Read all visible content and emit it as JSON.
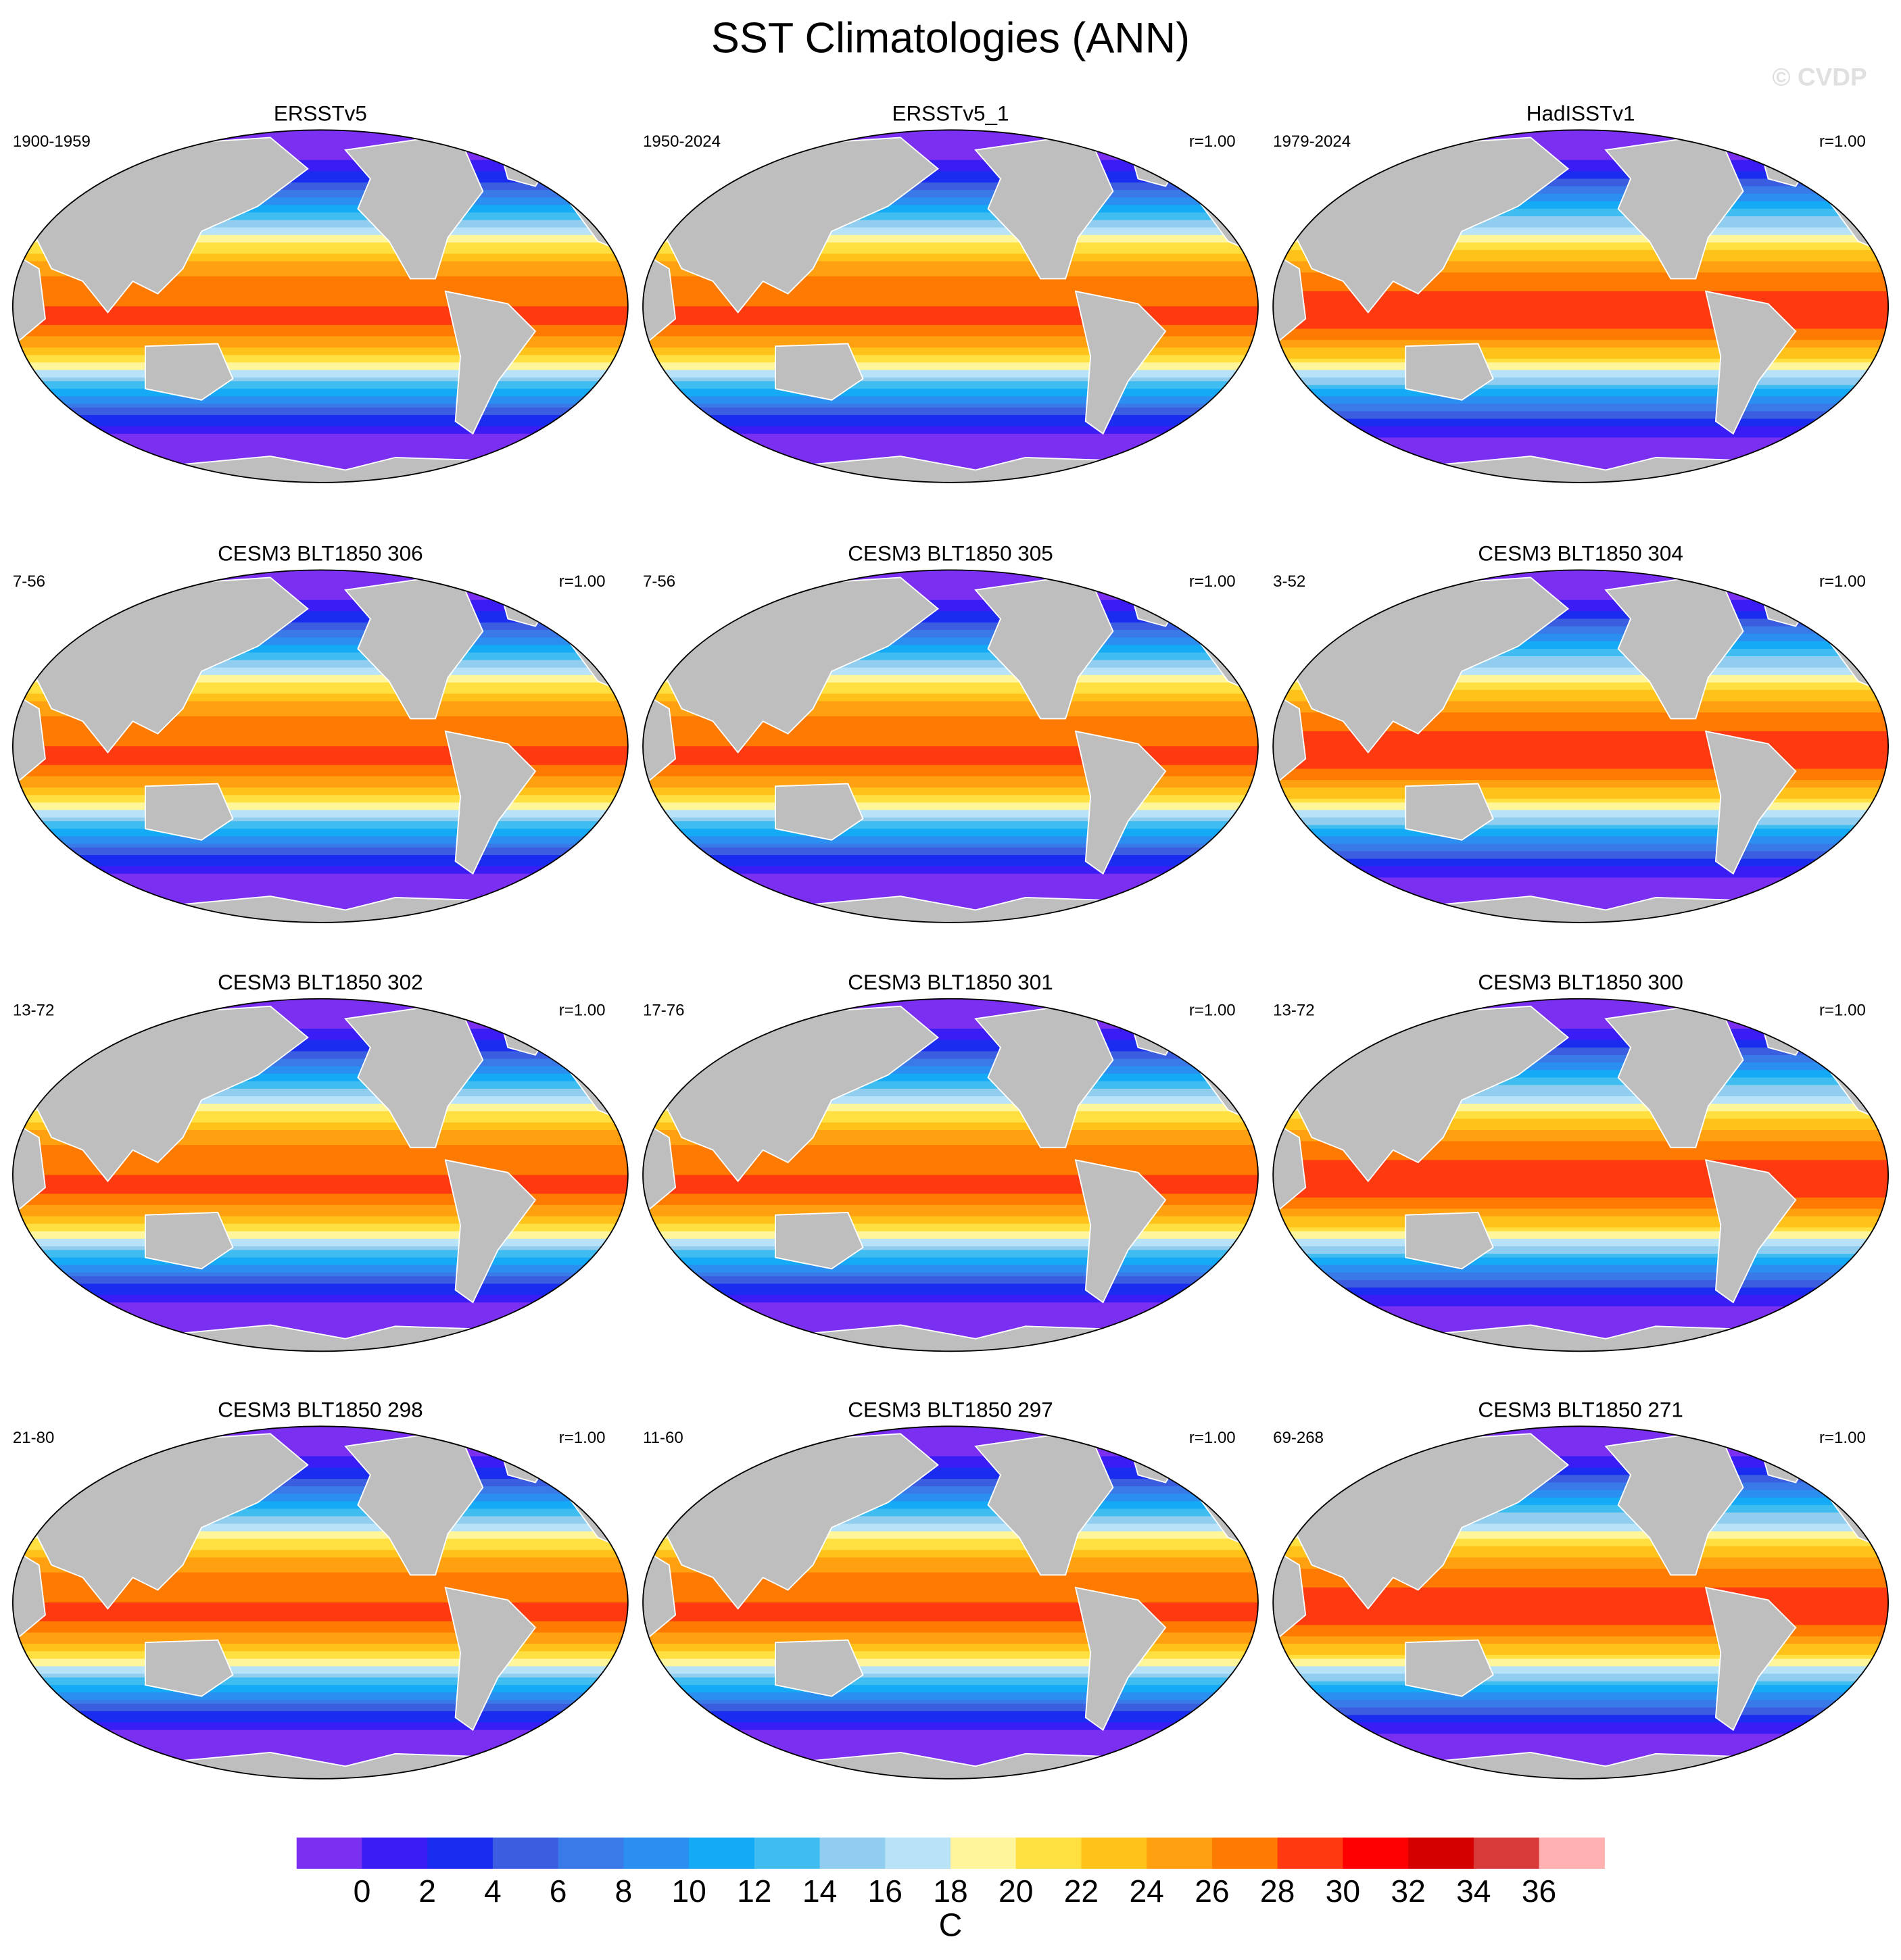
{
  "title": "SST Climatologies (ANN)",
  "watermark": "© CVDP",
  "panels": [
    {
      "title": "ERSSTv5",
      "period": "1900-1959"
    },
    {
      "title": "ERSSTv5_1",
      "period": "1950-2024",
      "r": "r=1.00"
    },
    {
      "title": "HadISSTv1",
      "period": "1979-2024",
      "r": "r=1.00"
    },
    {
      "title": "CESM3 BLT1850 306",
      "period": "7-56",
      "r": "r=1.00"
    },
    {
      "title": "CESM3 BLT1850 305",
      "period": "7-56",
      "r": "r=1.00"
    },
    {
      "title": "CESM3 BLT1850 304",
      "period": "3-52",
      "r": "r=1.00"
    },
    {
      "title": "CESM3 BLT1850 302",
      "period": "13-72",
      "r": "r=1.00"
    },
    {
      "title": "CESM3 BLT1850 301",
      "period": "17-76",
      "r": "r=1.00"
    },
    {
      "title": "CESM3 BLT1850 300",
      "period": "13-72",
      "r": "r=1.00"
    },
    {
      "title": "CESM3 BLT1850 298",
      "period": "21-80",
      "r": "r=1.00"
    },
    {
      "title": "CESM3 BLT1850 297",
      "period": "11-60",
      "r": "r=1.00"
    },
    {
      "title": "CESM3 BLT1850 271",
      "period": "69-268",
      "r": "r=1.00"
    }
  ],
  "colorbar": {
    "colors": [
      "#7b2ff0",
      "#3a1cf5",
      "#1a2cf0",
      "#3b5de0",
      "#3a7ae8",
      "#2a8ff0",
      "#14aaf5",
      "#40bdf0",
      "#90cdee",
      "#b8e2f8",
      "#fff59a",
      "#ffe040",
      "#ffc21a",
      "#ffa010",
      "#ff7a00",
      "#ff3a10",
      "#ff0000",
      "#d40000",
      "#d83a3a",
      "#ffb0b0"
    ],
    "ticks": [
      0,
      2,
      4,
      6,
      8,
      10,
      12,
      14,
      16,
      18,
      20,
      22,
      24,
      26,
      28,
      30,
      32,
      34,
      36
    ],
    "label": "C"
  }
}
